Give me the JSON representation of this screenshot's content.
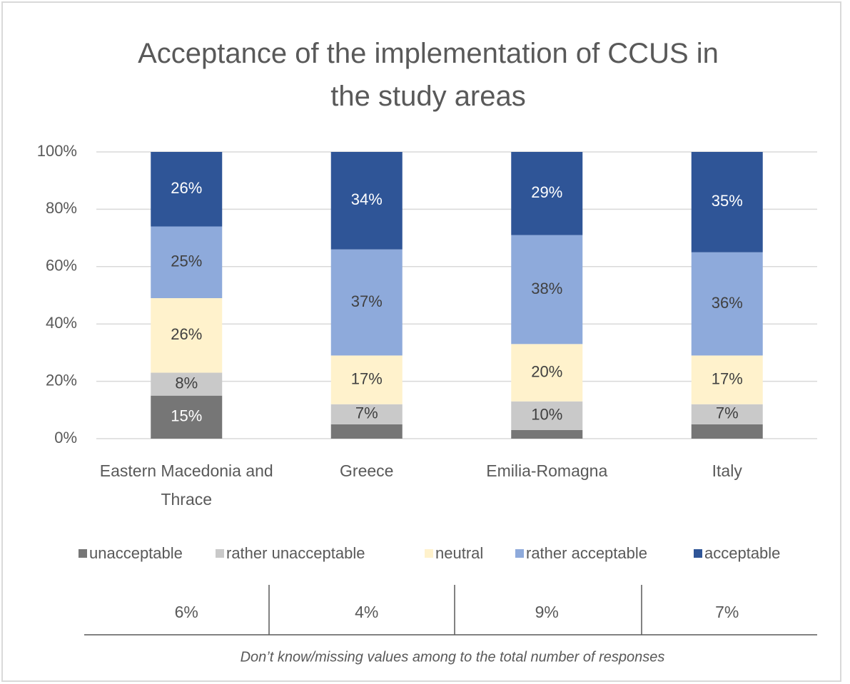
{
  "chart_data": {
    "type": "stacked_bar",
    "title": "Acceptance of the implementation of CCUS in the study areas",
    "categories": [
      "Eastern Macedonia and Thrace",
      "Greece",
      "Emilia-Romagna",
      "Italy"
    ],
    "series": [
      {
        "name": "unacceptable",
        "color": "#767676",
        "label_color": "#ffffff",
        "values": [
          15,
          5,
          3,
          5
        ],
        "value_labels": [
          "15%",
          null,
          null,
          null
        ]
      },
      {
        "name": "rather unacceptable",
        "color": "#c9c9c9",
        "label_color": "#404040",
        "values": [
          8,
          7,
          10,
          7
        ],
        "value_labels": [
          "8%",
          "7%",
          "10%",
          "7%"
        ]
      },
      {
        "name": "neutral",
        "color": "#fff2cc",
        "label_color": "#404040",
        "values": [
          26,
          17,
          20,
          17
        ],
        "value_labels": [
          "26%",
          "17%",
          "20%",
          "17%"
        ]
      },
      {
        "name": "rather acceptable",
        "color": "#8eaadb",
        "label_color": "#404040",
        "values": [
          25,
          37,
          38,
          36
        ],
        "value_labels": [
          "25%",
          "37%",
          "38%",
          "36%"
        ]
      },
      {
        "name": "acceptable",
        "color": "#2f5597",
        "label_color": "#ffffff",
        "values": [
          26,
          34,
          29,
          35
        ],
        "value_labels": [
          "26%",
          "34%",
          "29%",
          "35%"
        ]
      }
    ],
    "ylim": [
      0,
      100
    ],
    "yticks": [
      {
        "value": 0,
        "label": "0%"
      },
      {
        "value": 20,
        "label": "20%"
      },
      {
        "value": 40,
        "label": "40%"
      },
      {
        "value": 60,
        "label": "60%"
      },
      {
        "value": 80,
        "label": "80%"
      },
      {
        "value": 100,
        "label": "100%"
      }
    ],
    "grid": true,
    "legend": "bottom",
    "dont_know": {
      "labels": [
        "6%",
        "4%",
        "9%",
        "7%"
      ],
      "caption": "Don’t know/missing values among to the total number of responses"
    }
  }
}
